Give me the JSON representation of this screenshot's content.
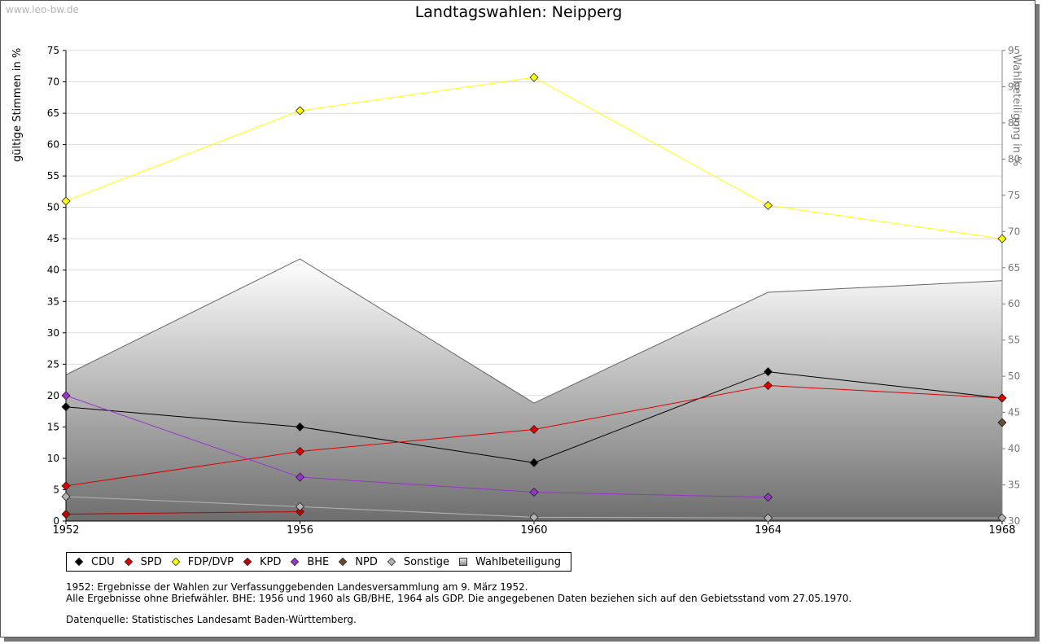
{
  "watermark": "www.leo-bw.de",
  "chart_data": {
    "type": "line",
    "title": "Landtagswahlen: Neipperg",
    "ylabel": "gültige Stimmen in %",
    "ylabel_right": "Wahlbeteiligung in %",
    "x": [
      1952,
      1956,
      1960,
      1964,
      1968
    ],
    "x_ticks": [
      "1952",
      "1956",
      "1960",
      "1964",
      "1968"
    ],
    "ylim": [
      0,
      75
    ],
    "y_ticks": [
      "0",
      "5",
      "10",
      "15",
      "20",
      "25",
      "30",
      "35",
      "40",
      "45",
      "50",
      "55",
      "60",
      "65",
      "70",
      "75"
    ],
    "ylim_right": [
      30,
      95
    ],
    "y_ticks_right": [
      "30",
      "35",
      "40",
      "45",
      "50",
      "55",
      "60",
      "65",
      "70",
      "75",
      "80",
      "85",
      "90",
      "95"
    ],
    "grid": true,
    "legend_position": "bottom",
    "series": [
      {
        "name": "CDU",
        "color": "#000000",
        "values": [
          18.2,
          15.0,
          9.3,
          23.8,
          19.6
        ]
      },
      {
        "name": "SPD",
        "color": "#e00000",
        "values": [
          5.6,
          11.1,
          14.6,
          21.6,
          19.6
        ]
      },
      {
        "name": "FDP/DVP",
        "color": "#ffff00",
        "values": [
          51.0,
          65.4,
          70.7,
          50.3,
          45.0
        ]
      },
      {
        "name": "KPD",
        "color": "#c00000",
        "values": [
          1.1,
          1.5,
          null,
          null,
          null
        ]
      },
      {
        "name": "BHE",
        "color": "#9933cc",
        "values": [
          20.0,
          7.0,
          4.6,
          3.8,
          null
        ]
      },
      {
        "name": "NPD",
        "color": "#6b4a2e",
        "values": [
          null,
          null,
          null,
          null,
          15.7
        ]
      },
      {
        "name": "Sonstige",
        "color": "#b4b4b4",
        "values": [
          3.9,
          2.3,
          0.6,
          0.5,
          0.5
        ]
      }
    ],
    "area_series": {
      "name": "Wahlbeteiligung",
      "axis": "right",
      "values": [
        50.2,
        66.2,
        46.3,
        61.6,
        63.2
      ]
    }
  },
  "notes": {
    "line1": "1952: Ergebnisse der Wahlen zur Verfassunggebenden Landesversammlung am 9. März 1952.",
    "line2": "Alle Ergebnisse ohne Briefwähler. BHE: 1956 und 1960 als GB/BHE, 1964 als GDP. Die angegebenen Daten beziehen sich auf den Gebietsstand vom 27.05.1970.",
    "source": "Datenquelle: Statistisches Landesamt Baden-Württemberg."
  }
}
